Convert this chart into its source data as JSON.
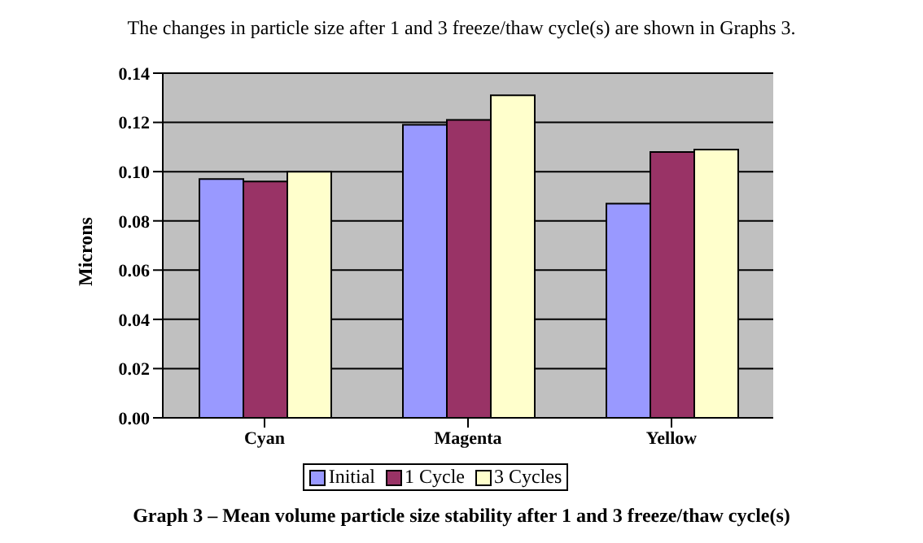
{
  "chart_data": {
    "type": "bar",
    "title": "The changes in particle size after 1 and 3 freeze/thaw cycle(s) are shown in Graphs 3.",
    "ylabel": "Microns",
    "categories": [
      "Cyan",
      "Magenta",
      "Yellow"
    ],
    "series": [
      {
        "name": "Initial",
        "color": "#9999ff",
        "values": [
          0.097,
          0.119,
          0.087
        ]
      },
      {
        "name": "1 Cycle",
        "color": "#993366",
        "values": [
          0.096,
          0.121,
          0.108
        ]
      },
      {
        "name": "3 Cycles",
        "color": "#ffffcc",
        "values": [
          0.1,
          0.131,
          0.109
        ]
      }
    ],
    "ylim": [
      0,
      0.14
    ],
    "yticks": [
      {
        "value": 0,
        "label": "0.00"
      },
      0.02,
      0.04,
      0.06,
      0.08,
      {
        "value": 0.1,
        "label": "0.10"
      },
      0.12,
      0.14
    ],
    "grid": "y",
    "legend": "bottom",
    "annotations": [
      "Graph 3 – Mean volume particle size stability after 1 and 3 freeze/thaw cycle(s)"
    ]
  }
}
